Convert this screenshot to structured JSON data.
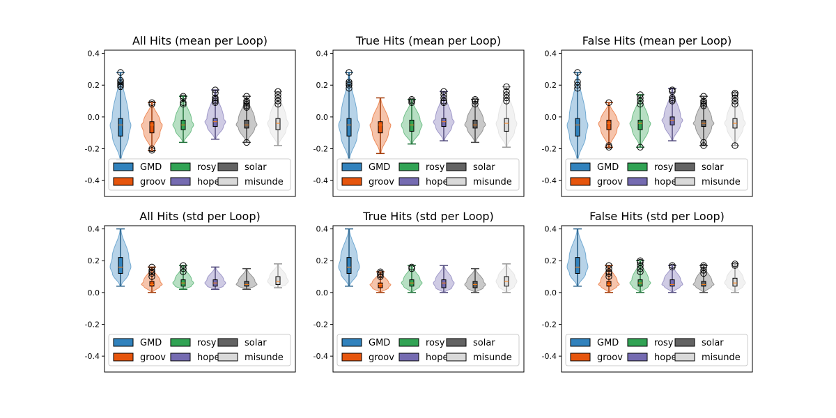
{
  "figure": {
    "legend_labels": [
      "GMD",
      "groov",
      "rosy",
      "hope",
      "solar",
      "misunde"
    ]
  },
  "colors": {
    "GMD": "#3182bd",
    "groov": "#e6550d",
    "rosy": "#31a354",
    "hope": "#756bb1",
    "solar": "#636363",
    "misunde": "#d9d9d9"
  },
  "chart_data": [
    {
      "type": "violin",
      "title": "All Hits (mean per Loop)",
      "ylim": [
        -0.5,
        0.42
      ],
      "yticks": [
        -0.4,
        -0.2,
        0.0,
        0.2,
        0.4
      ],
      "legend_position": "lower-center",
      "series": [
        {
          "name": "GMD",
          "min": -0.27,
          "q1": -0.12,
          "median": -0.05,
          "q3": -0.01,
          "max": 0.28,
          "outliers": [
            0.19,
            0.2,
            0.21,
            0.22,
            0.23,
            0.28
          ]
        },
        {
          "name": "groov",
          "min": -0.21,
          "q1": -0.1,
          "median": -0.05,
          "q3": -0.03,
          "max": 0.09,
          "outliers": [
            -0.2,
            -0.21,
            0.08,
            0.09
          ]
        },
        {
          "name": "rosy",
          "min": -0.16,
          "q1": -0.08,
          "median": -0.05,
          "q3": -0.02,
          "max": 0.13,
          "outliers": [
            0.08,
            0.09,
            0.12,
            0.13
          ]
        },
        {
          "name": "hope",
          "min": -0.14,
          "q1": -0.06,
          "median": -0.03,
          "q3": -0.01,
          "max": 0.17,
          "outliers": [
            0.09,
            0.1,
            0.11,
            0.12,
            0.15,
            0.17
          ]
        },
        {
          "name": "solar",
          "min": -0.16,
          "q1": -0.07,
          "median": -0.05,
          "q3": -0.02,
          "max": 0.13,
          "outliers": [
            0.06,
            0.07,
            0.08,
            0.09,
            0.1,
            0.13,
            -0.16
          ]
        },
        {
          "name": "misunde",
          "min": -0.18,
          "q1": -0.08,
          "median": -0.04,
          "q3": -0.01,
          "max": 0.16,
          "outliers": [
            0.08,
            0.1,
            0.12,
            0.14,
            0.16
          ]
        }
      ]
    },
    {
      "type": "violin",
      "title": "True Hits (mean per Loop)",
      "ylim": [
        -0.5,
        0.42
      ],
      "yticks": [
        -0.4,
        -0.2,
        0.0,
        0.2,
        0.4
      ],
      "legend_position": "lower-center",
      "series": [
        {
          "name": "GMD",
          "min": -0.27,
          "q1": -0.12,
          "median": -0.05,
          "q3": -0.01,
          "max": 0.28,
          "outliers": [
            0.18,
            0.2,
            0.21,
            0.22,
            0.28
          ]
        },
        {
          "name": "groov",
          "min": -0.23,
          "q1": -0.1,
          "median": -0.05,
          "q3": -0.03,
          "max": 0.12,
          "outliers": []
        },
        {
          "name": "rosy",
          "min": -0.17,
          "q1": -0.09,
          "median": -0.05,
          "q3": -0.02,
          "max": 0.11,
          "outliers": [
            0.09,
            0.1,
            0.11
          ]
        },
        {
          "name": "hope",
          "min": -0.15,
          "q1": -0.06,
          "median": -0.03,
          "q3": -0.01,
          "max": 0.16,
          "outliers": [
            0.09,
            0.1,
            0.12,
            0.14,
            0.16
          ]
        },
        {
          "name": "solar",
          "min": -0.16,
          "q1": -0.07,
          "median": -0.05,
          "q3": -0.02,
          "max": 0.11,
          "outliers": [
            0.08,
            0.1,
            0.11
          ]
        },
        {
          "name": "misunde",
          "min": -0.19,
          "q1": -0.09,
          "median": -0.04,
          "q3": -0.01,
          "max": 0.19,
          "outliers": [
            0.1,
            0.12,
            0.14,
            0.16,
            0.19
          ]
        }
      ]
    },
    {
      "type": "violin",
      "title": "False Hits (mean per Loop)",
      "ylim": [
        -0.5,
        0.42
      ],
      "yticks": [
        -0.4,
        -0.2,
        0.0,
        0.2,
        0.4
      ],
      "legend_position": "lower-center",
      "series": [
        {
          "name": "GMD",
          "min": -0.27,
          "q1": -0.12,
          "median": -0.05,
          "q3": -0.01,
          "max": 0.28,
          "outliers": [
            0.18,
            0.2,
            0.22,
            0.28
          ]
        },
        {
          "name": "groov",
          "min": -0.19,
          "q1": -0.08,
          "median": -0.04,
          "q3": -0.02,
          "max": 0.09,
          "outliers": [
            -0.18,
            -0.19,
            0.09
          ]
        },
        {
          "name": "rosy",
          "min": -0.19,
          "q1": -0.08,
          "median": -0.04,
          "q3": -0.02,
          "max": 0.14,
          "outliers": [
            0.08,
            0.1,
            0.12,
            0.14,
            -0.19
          ]
        },
        {
          "name": "hope",
          "min": -0.15,
          "q1": -0.05,
          "median": -0.02,
          "q3": 0.0,
          "max": 0.18,
          "outliers": [
            0.1,
            0.11,
            0.12,
            0.16,
            0.17
          ]
        },
        {
          "name": "solar",
          "min": -0.18,
          "q1": -0.06,
          "median": -0.04,
          "q3": -0.02,
          "max": 0.13,
          "outliers": [
            0.07,
            0.08,
            0.09,
            0.1,
            0.13,
            -0.16,
            -0.18
          ]
        },
        {
          "name": "misunde",
          "min": -0.18,
          "q1": -0.07,
          "median": -0.04,
          "q3": -0.01,
          "max": 0.15,
          "outliers": [
            0.08,
            0.1,
            0.12,
            0.14,
            0.15,
            -0.18
          ]
        }
      ]
    },
    {
      "type": "violin",
      "title": "All Hits (std per Loop)",
      "ylim": [
        -0.5,
        0.42
      ],
      "yticks": [
        -0.4,
        -0.2,
        0.0,
        0.2,
        0.4
      ],
      "legend_position": "lower-center",
      "series": [
        {
          "name": "GMD",
          "min": 0.04,
          "q1": 0.12,
          "median": 0.16,
          "q3": 0.22,
          "max": 0.4,
          "outliers": []
        },
        {
          "name": "groov",
          "min": 0.0,
          "q1": 0.04,
          "median": 0.05,
          "q3": 0.07,
          "max": 0.16,
          "outliers": [
            0.1,
            0.12,
            0.13,
            0.14,
            0.16
          ]
        },
        {
          "name": "rosy",
          "min": 0.02,
          "q1": 0.04,
          "median": 0.06,
          "q3": 0.08,
          "max": 0.17,
          "outliers": [
            0.13,
            0.15,
            0.17
          ]
        },
        {
          "name": "hope",
          "min": 0.02,
          "q1": 0.04,
          "median": 0.06,
          "q3": 0.08,
          "max": 0.16,
          "outliers": []
        },
        {
          "name": "solar",
          "min": 0.02,
          "q1": 0.04,
          "median": 0.05,
          "q3": 0.07,
          "max": 0.15,
          "outliers": []
        },
        {
          "name": "misunde",
          "min": 0.03,
          "q1": 0.05,
          "median": 0.07,
          "q3": 0.1,
          "max": 0.18,
          "outliers": []
        }
      ]
    },
    {
      "type": "violin",
      "title": "True Hits (std per Loop)",
      "ylim": [
        -0.5,
        0.42
      ],
      "yticks": [
        -0.4,
        -0.2,
        0.0,
        0.2,
        0.4
      ],
      "legend_position": "lower-center",
      "series": [
        {
          "name": "GMD",
          "min": 0.04,
          "q1": 0.12,
          "median": 0.16,
          "q3": 0.22,
          "max": 0.4,
          "outliers": []
        },
        {
          "name": "groov",
          "min": 0.0,
          "q1": 0.03,
          "median": 0.05,
          "q3": 0.06,
          "max": 0.13,
          "outliers": [
            0.1,
            0.11,
            0.12,
            0.13
          ]
        },
        {
          "name": "rosy",
          "min": 0.0,
          "q1": 0.04,
          "median": 0.06,
          "q3": 0.08,
          "max": 0.17,
          "outliers": [
            0.15,
            0.16
          ]
        },
        {
          "name": "hope",
          "min": 0.0,
          "q1": 0.03,
          "median": 0.06,
          "q3": 0.08,
          "max": 0.17,
          "outliers": []
        },
        {
          "name": "solar",
          "min": 0.0,
          "q1": 0.03,
          "median": 0.05,
          "q3": 0.07,
          "max": 0.15,
          "outliers": []
        },
        {
          "name": "misunde",
          "min": 0.0,
          "q1": 0.04,
          "median": 0.07,
          "q3": 0.1,
          "max": 0.18,
          "outliers": []
        }
      ]
    },
    {
      "type": "violin",
      "title": "False Hits (std per Loop)",
      "ylim": [
        -0.5,
        0.42
      ],
      "yticks": [
        -0.4,
        -0.2,
        0.0,
        0.2,
        0.4
      ],
      "legend_position": "lower-center",
      "series": [
        {
          "name": "GMD",
          "min": 0.04,
          "q1": 0.12,
          "median": 0.16,
          "q3": 0.22,
          "max": 0.4,
          "outliers": []
        },
        {
          "name": "groov",
          "min": 0.0,
          "q1": 0.04,
          "median": 0.05,
          "q3": 0.07,
          "max": 0.17,
          "outliers": [
            0.1,
            0.12,
            0.13,
            0.15,
            0.17
          ]
        },
        {
          "name": "rosy",
          "min": 0.0,
          "q1": 0.04,
          "median": 0.06,
          "q3": 0.08,
          "max": 0.2,
          "outliers": [
            0.13,
            0.15,
            0.17,
            0.19,
            0.2
          ]
        },
        {
          "name": "hope",
          "min": 0.0,
          "q1": 0.04,
          "median": 0.05,
          "q3": 0.08,
          "max": 0.17,
          "outliers": [
            0.16,
            0.17
          ]
        },
        {
          "name": "solar",
          "min": 0.0,
          "q1": 0.04,
          "median": 0.05,
          "q3": 0.07,
          "max": 0.17,
          "outliers": [
            0.12,
            0.14,
            0.16,
            0.17
          ]
        },
        {
          "name": "misunde",
          "min": 0.0,
          "q1": 0.04,
          "median": 0.06,
          "q3": 0.09,
          "max": 0.18,
          "outliers": [
            0.17,
            0.18
          ]
        }
      ]
    }
  ]
}
